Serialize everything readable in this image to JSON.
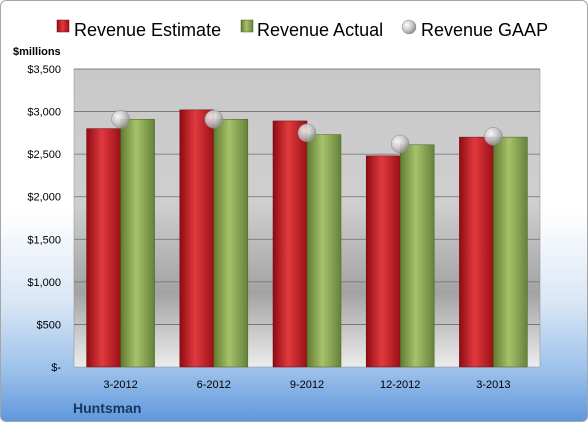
{
  "chart_data": {
    "type": "bar",
    "unit_label": "$millions",
    "company": "Huntsman",
    "categories": [
      "3-2012",
      "6-2012",
      "9-2012",
      "12-2012",
      "3-2013"
    ],
    "series": [
      {
        "name": "Revenue Estimate",
        "kind": "bar",
        "color": "#c0141c",
        "values": [
          2800,
          3020,
          2890,
          2480,
          2700
        ]
      },
      {
        "name": "Revenue Actual",
        "kind": "bar",
        "color": "#8aab4f",
        "values": [
          2910,
          2910,
          2730,
          2610,
          2700
        ]
      },
      {
        "name": "Revenue GAAP",
        "kind": "marker",
        "color": "#b8b8b8",
        "values": [
          2910,
          2910,
          2750,
          2620,
          2710
        ]
      }
    ],
    "yticks": [
      0,
      500,
      1000,
      1500,
      2000,
      2500,
      3000,
      3500
    ],
    "ytick_labels": [
      "$-",
      "$500",
      "$1,000",
      "$1,500",
      "$2,000",
      "$2,500",
      "$3,000",
      "$3,500"
    ],
    "ylim": [
      0,
      3500
    ],
    "grid": true,
    "legend_position": "top"
  }
}
